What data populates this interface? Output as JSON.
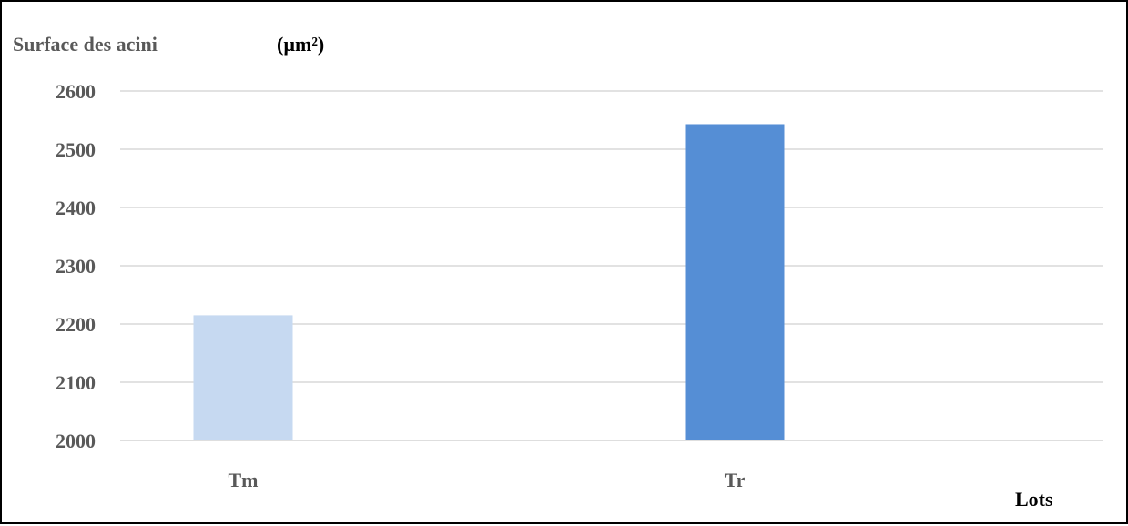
{
  "chart_data": {
    "type": "bar",
    "ylabel": "Surface des acini",
    "ylabel_unit": "(µm²)",
    "xlabel": "Lots",
    "categories": [
      "Tm",
      "Tr"
    ],
    "values": [
      2215,
      2543
    ],
    "bar_colors": [
      "#c6d9f1",
      "#558ed5"
    ],
    "ylim": [
      2000,
      2600
    ],
    "yticks": [
      2000,
      2100,
      2200,
      2300,
      2400,
      2500,
      2600
    ],
    "ytick_labels": [
      "2000",
      "2100",
      "2200",
      "2300",
      "2400",
      "2500",
      "2600"
    ],
    "grid": true,
    "legend": false
  }
}
